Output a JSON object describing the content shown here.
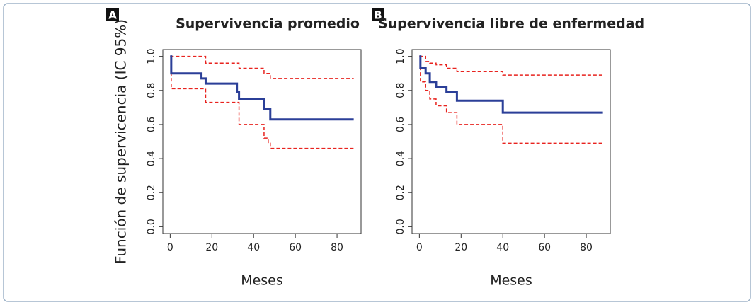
{
  "chart_data": [
    {
      "type": "line",
      "panel": "A",
      "title": "Supervivencia promedio",
      "ylabel": "Función de supervicencia (IC 95%)",
      "xlabel": "Meses",
      "step": "post",
      "xlim": [
        -3.52,
        91.52
      ],
      "ylim": [
        -0.04,
        1.04
      ],
      "xticks": [
        0,
        20,
        40,
        60,
        80
      ],
      "yticks": [
        {
          "value": 0,
          "label": "0.0"
        },
        0.2,
        0.4,
        0.6,
        0.8,
        {
          "value": 1,
          "label": "1.0"
        }
      ],
      "series": [
        {
          "color": "#2b3f98",
          "line_style": "solid",
          "x": [
            0,
            0.5,
            15,
            17,
            32,
            33,
            45,
            48,
            88
          ],
          "values": [
            1.0,
            0.9,
            0.87,
            0.84,
            0.79,
            0.75,
            0.69,
            0.63,
            0.63
          ]
        },
        {
          "color": "#e8231f",
          "line_style": "dashed",
          "x": [
            0,
            17,
            33,
            45,
            48,
            88
          ],
          "values": [
            1.0,
            0.96,
            0.93,
            0.9,
            0.87,
            0.87
          ]
        },
        {
          "color": "#e8231f",
          "line_style": "dashed",
          "x": [
            0,
            0.5,
            17,
            33,
            45,
            47,
            48,
            88
          ],
          "values": [
            1.0,
            0.81,
            0.73,
            0.6,
            0.52,
            0.49,
            0.46,
            0.46
          ]
        }
      ]
    },
    {
      "type": "line",
      "panel": "B",
      "title": "Supervivencia libre de enfermedad",
      "xlabel": "Meses",
      "step": "post",
      "xlim": [
        -3.52,
        91.52
      ],
      "ylim": [
        -0.04,
        1.04
      ],
      "xticks": [
        0,
        20,
        40,
        60,
        80
      ],
      "yticks": [
        {
          "value": 0,
          "label": "0.0"
        },
        0.2,
        0.4,
        0.6,
        0.8,
        {
          "value": 1,
          "label": "1.0"
        }
      ],
      "series": [
        {
          "color": "#2b3f98",
          "line_style": "solid",
          "x": [
            0,
            0.5,
            3,
            5,
            8,
            13,
            18,
            40,
            88
          ],
          "values": [
            1.0,
            0.93,
            0.9,
            0.85,
            0.82,
            0.79,
            0.74,
            0.67,
            0.67
          ]
        },
        {
          "color": "#e8231f",
          "line_style": "dashed",
          "x": [
            0,
            3,
            5,
            8,
            13,
            18,
            40,
            88
          ],
          "values": [
            1.0,
            0.97,
            0.96,
            0.95,
            0.93,
            0.91,
            0.89,
            0.89
          ]
        },
        {
          "color": "#e8231f",
          "line_style": "dashed",
          "x": [
            0,
            0.5,
            3,
            5,
            8,
            13,
            18,
            40,
            88
          ],
          "values": [
            1.0,
            0.85,
            0.8,
            0.75,
            0.71,
            0.67,
            0.6,
            0.49,
            0.49
          ]
        }
      ]
    }
  ]
}
